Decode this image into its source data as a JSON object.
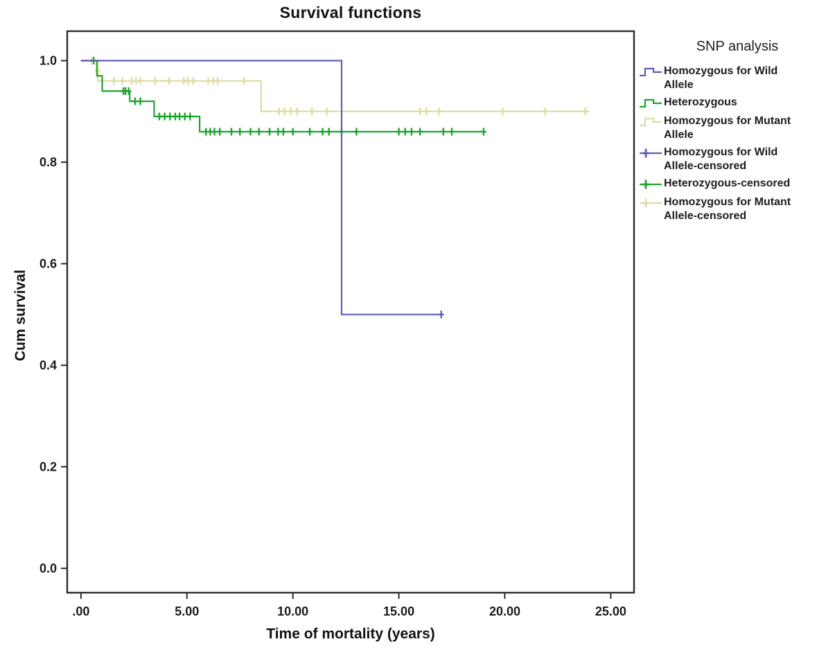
{
  "legend": {
    "title": "SNP analysis",
    "items": [
      {
        "label": "Homozygous for Wild Allele",
        "swatch": "step-line",
        "series": "wild"
      },
      {
        "label": "Heterozygous",
        "swatch": "step-line",
        "series": "het"
      },
      {
        "label": "Homozygous for Mutant Allele",
        "swatch": "step-line",
        "series": "mutant"
      },
      {
        "label": "Homozygous for Wild Allele-censored",
        "swatch": "censor-plus",
        "series": "wild"
      },
      {
        "label": "Heterozygous-censored",
        "swatch": "censor-plus",
        "series": "het"
      },
      {
        "label": "Homozygous for Mutant Allele-censored",
        "swatch": "censor-plus",
        "series": "mutant"
      }
    ]
  },
  "chart_data": {
    "type": "line",
    "variant": "kaplan-meier-step",
    "title": "Survival functions",
    "xlabel": "Time of mortality (years)",
    "ylabel": "Cum survival",
    "legend_title": "SNP analysis",
    "legend_position": "right",
    "grid": false,
    "xlim": [
      -0.65,
      26.1
    ],
    "ylim": [
      -0.048,
      1.058
    ],
    "xticks": {
      "values": [
        0,
        5,
        10,
        15,
        20,
        25
      ],
      "labels": [
        ".00",
        "5.00",
        "10.00",
        "15.00",
        "20.00",
        "25.00"
      ]
    },
    "yticks": {
      "values": [
        0.0,
        0.2,
        0.4,
        0.6,
        0.8,
        1.0
      ],
      "labels": [
        "0.0",
        "0.2",
        "0.4",
        "0.6",
        "0.8",
        "1.0"
      ]
    },
    "colors": {
      "wild": "#5c5cb8",
      "het": "#1ea42d",
      "mutant": "#dedc9e",
      "axis": "#2b2b2b",
      "text": "#1a1a1a"
    },
    "series": [
      {
        "id": "wild",
        "name": "Homozygous for Wild Allele",
        "color": "#5c5cb8",
        "steps": [
          [
            0,
            1.0
          ],
          [
            12.3,
            1.0
          ],
          [
            12.3,
            0.5
          ],
          [
            17.0,
            0.5
          ]
        ],
        "censored": [
          [
            17.0,
            0.5
          ]
        ]
      },
      {
        "id": "het",
        "name": "Heterozygous",
        "color": "#1ea42d",
        "steps": [
          [
            0,
            1.0
          ],
          [
            0.75,
            1.0
          ],
          [
            0.75,
            0.97
          ],
          [
            1.0,
            0.97
          ],
          [
            1.0,
            0.94
          ],
          [
            2.3,
            0.94
          ],
          [
            2.3,
            0.92
          ],
          [
            3.45,
            0.92
          ],
          [
            3.45,
            0.89
          ],
          [
            5.6,
            0.89
          ],
          [
            5.6,
            0.86
          ],
          [
            19.0,
            0.86
          ]
        ],
        "censored": [
          [
            0.6,
            1.0
          ],
          [
            2.0,
            0.94
          ],
          [
            2.1,
            0.94
          ],
          [
            2.25,
            0.94
          ],
          [
            2.55,
            0.92
          ],
          [
            2.8,
            0.92
          ],
          [
            3.7,
            0.89
          ],
          [
            3.95,
            0.89
          ],
          [
            4.2,
            0.89
          ],
          [
            4.45,
            0.89
          ],
          [
            4.65,
            0.89
          ],
          [
            4.9,
            0.89
          ],
          [
            5.15,
            0.89
          ],
          [
            5.9,
            0.86
          ],
          [
            6.1,
            0.86
          ],
          [
            6.3,
            0.86
          ],
          [
            6.55,
            0.86
          ],
          [
            7.1,
            0.86
          ],
          [
            7.5,
            0.86
          ],
          [
            8.0,
            0.86
          ],
          [
            8.4,
            0.86
          ],
          [
            8.9,
            0.86
          ],
          [
            9.3,
            0.86
          ],
          [
            9.55,
            0.86
          ],
          [
            10.0,
            0.86
          ],
          [
            10.8,
            0.86
          ],
          [
            11.4,
            0.86
          ],
          [
            11.7,
            0.86
          ],
          [
            12.3,
            0.86
          ],
          [
            13.0,
            0.86
          ],
          [
            15.0,
            0.86
          ],
          [
            15.3,
            0.86
          ],
          [
            15.6,
            0.86
          ],
          [
            16.0,
            0.86
          ],
          [
            17.1,
            0.86
          ],
          [
            17.5,
            0.86
          ],
          [
            19.0,
            0.86
          ]
        ]
      },
      {
        "id": "mutant",
        "name": "Homozygous for Mutant Allele",
        "color": "#dedc9e",
        "steps": [
          [
            0,
            1.0
          ],
          [
            0.8,
            1.0
          ],
          [
            0.8,
            0.96
          ],
          [
            8.5,
            0.96
          ],
          [
            8.5,
            0.9
          ],
          [
            24.0,
            0.9
          ]
        ],
        "censored": [
          [
            0.5,
            1.0
          ],
          [
            0.8,
            0.98
          ],
          [
            1.55,
            0.96
          ],
          [
            1.95,
            0.96
          ],
          [
            2.4,
            0.96
          ],
          [
            2.6,
            0.96
          ],
          [
            2.8,
            0.96
          ],
          [
            3.5,
            0.96
          ],
          [
            4.15,
            0.96
          ],
          [
            4.85,
            0.96
          ],
          [
            5.05,
            0.96
          ],
          [
            5.3,
            0.96
          ],
          [
            6.0,
            0.96
          ],
          [
            6.25,
            0.96
          ],
          [
            6.45,
            0.96
          ],
          [
            7.7,
            0.96
          ],
          [
            9.35,
            0.9
          ],
          [
            9.6,
            0.9
          ],
          [
            9.9,
            0.9
          ],
          [
            10.2,
            0.9
          ],
          [
            10.9,
            0.9
          ],
          [
            11.6,
            0.9
          ],
          [
            16.0,
            0.9
          ],
          [
            16.3,
            0.9
          ],
          [
            16.9,
            0.9
          ],
          [
            19.9,
            0.9
          ],
          [
            21.9,
            0.9
          ],
          [
            23.8,
            0.9
          ]
        ]
      }
    ]
  }
}
